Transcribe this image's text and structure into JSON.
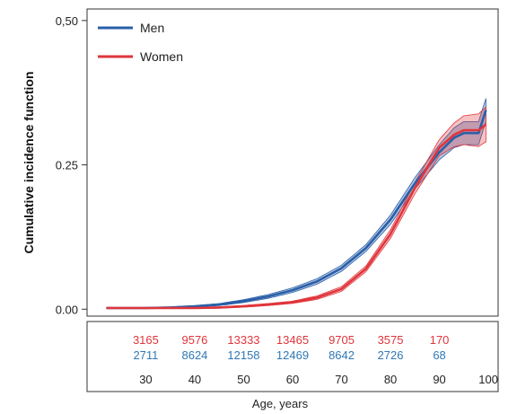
{
  "chart_data": {
    "type": "line",
    "ylabel": "Cumulative incidence function",
    "xlabel": "Age, years",
    "xlim": [
      18,
      102
    ],
    "ylim": [
      -0.012,
      0.52
    ],
    "y_ticks": [
      {
        "value": 0.0,
        "label": "0.00"
      },
      {
        "value": 0.25,
        "label": "0.25"
      },
      {
        "value": 0.5,
        "label": "0,50"
      }
    ],
    "x_ticks": [
      "30",
      "40",
      "50",
      "60",
      "70",
      "80",
      "90",
      "100"
    ],
    "legend": {
      "placement": "top-left"
    },
    "colors": {
      "men": "#2a5fa8",
      "women": "#e0353b",
      "men_text": "#2f78b4",
      "women_text": "#e0353b"
    },
    "series": [
      {
        "name": "Men",
        "color": "#2a5fa8",
        "points": [
          [
            22,
            0.002
          ],
          [
            30,
            0.002
          ],
          [
            35,
            0.003
          ],
          [
            40,
            0.005
          ],
          [
            45,
            0.008
          ],
          [
            50,
            0.014
          ],
          [
            55,
            0.022
          ],
          [
            60,
            0.033
          ],
          [
            65,
            0.048
          ],
          [
            70,
            0.071
          ],
          [
            75,
            0.106
          ],
          [
            80,
            0.155
          ],
          [
            85,
            0.218
          ],
          [
            90,
            0.272
          ],
          [
            93,
            0.297
          ],
          [
            95,
            0.305
          ],
          [
            98,
            0.305
          ],
          [
            99.5,
            0.345
          ]
        ],
        "ci_half_width": [
          [
            22,
            0.001
          ],
          [
            40,
            0.001
          ],
          [
            60,
            0.004
          ],
          [
            75,
            0.006
          ],
          [
            85,
            0.01
          ],
          [
            90,
            0.013
          ],
          [
            95,
            0.02
          ],
          [
            99.5,
            0.02
          ]
        ]
      },
      {
        "name": "Women",
        "color": "#e0353b",
        "points": [
          [
            22,
            0.002
          ],
          [
            30,
            0.002
          ],
          [
            40,
            0.002
          ],
          [
            45,
            0.003
          ],
          [
            50,
            0.005
          ],
          [
            55,
            0.008
          ],
          [
            60,
            0.012
          ],
          [
            65,
            0.02
          ],
          [
            70,
            0.035
          ],
          [
            75,
            0.07
          ],
          [
            80,
            0.13
          ],
          [
            85,
            0.21
          ],
          [
            90,
            0.28
          ],
          [
            93,
            0.302
          ],
          [
            95,
            0.31
          ],
          [
            98,
            0.31
          ],
          [
            99.5,
            0.32
          ]
        ],
        "ci_half_width": [
          [
            22,
            0.001
          ],
          [
            40,
            0.001
          ],
          [
            60,
            0.002
          ],
          [
            75,
            0.005
          ],
          [
            85,
            0.01
          ],
          [
            90,
            0.014
          ],
          [
            95,
            0.025
          ],
          [
            99.5,
            0.03
          ]
        ]
      }
    ],
    "at_risk": {
      "women": [
        "3165",
        "9576",
        "13333",
        "13465",
        "9705",
        "3575",
        "170"
      ],
      "men": [
        "2711",
        "8624",
        "12158",
        "12469",
        "8642",
        "2726",
        "68"
      ]
    }
  }
}
